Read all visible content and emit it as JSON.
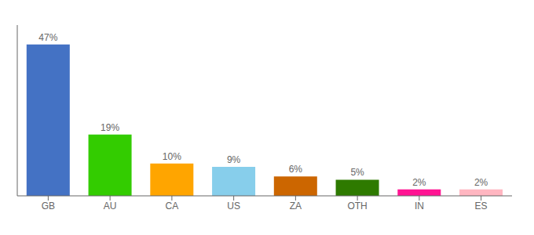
{
  "chart_data": {
    "type": "bar",
    "categories": [
      "GB",
      "AU",
      "CA",
      "US",
      "ZA",
      "OTH",
      "IN",
      "ES"
    ],
    "values": [
      47,
      19,
      10,
      9,
      6,
      5,
      2,
      2
    ],
    "value_labels": [
      "47%",
      "19%",
      "10%",
      "9%",
      "6%",
      "5%",
      "2%",
      "2%"
    ],
    "colors": [
      "#4472C4",
      "#33CC00",
      "#FFA500",
      "#87CEEB",
      "#CC6600",
      "#2E7A00",
      "#FF1493",
      "#FFB6C1"
    ],
    "ylim": [
      0,
      53
    ],
    "data_labels": true,
    "tick_labels": "x",
    "grid": false
  }
}
